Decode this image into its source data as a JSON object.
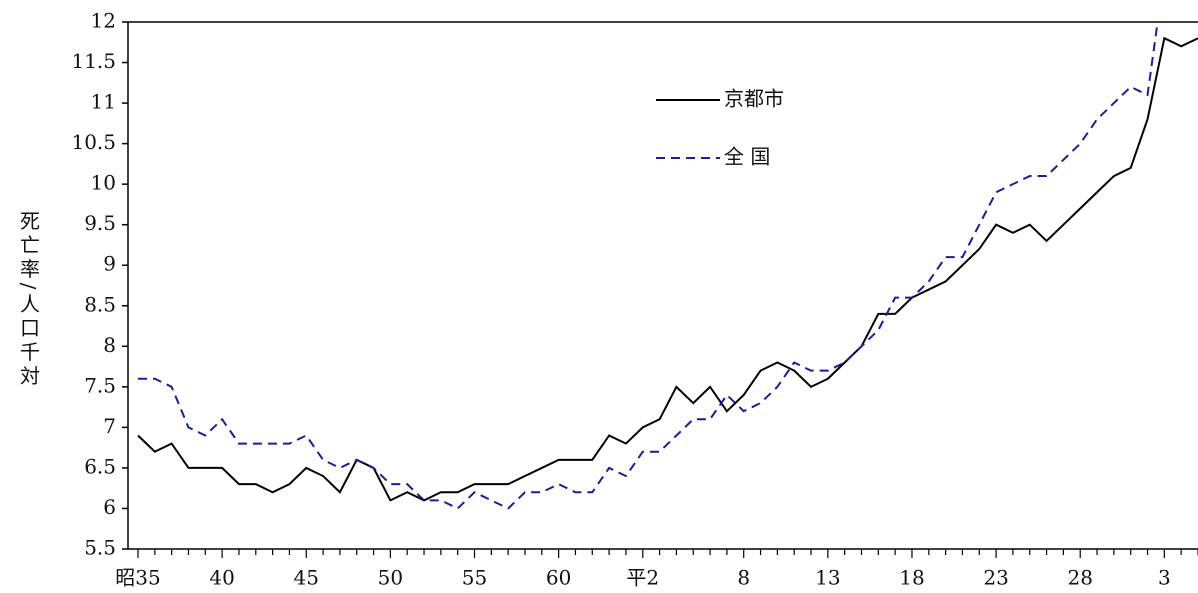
{
  "chart_data": {
    "type": "line",
    "y_label": "死亡率/人口千対",
    "categories": [
      "昭35",
      null,
      null,
      null,
      null,
      "40",
      null,
      null,
      null,
      null,
      "45",
      null,
      null,
      null,
      null,
      "50",
      null,
      null,
      null,
      null,
      "55",
      null,
      null,
      null,
      null,
      "60",
      null,
      null,
      null,
      null,
      "平2",
      null,
      null,
      null,
      null,
      null,
      "8",
      null,
      null,
      null,
      null,
      "13",
      null,
      null,
      null,
      null,
      "18",
      null,
      null,
      null,
      null,
      "23",
      null,
      null,
      null,
      null,
      "28",
      null,
      null,
      null,
      null,
      "3",
      null,
      null
    ],
    "series": [
      {
        "name": "京都市",
        "color": "#000000",
        "linestyle": "solid",
        "values": [
          6.9,
          6.7,
          6.8,
          6.5,
          6.5,
          6.5,
          6.3,
          6.3,
          6.2,
          6.3,
          6.5,
          6.4,
          6.2,
          6.6,
          6.5,
          6.1,
          6.2,
          6.1,
          6.2,
          6.2,
          6.3,
          6.3,
          6.3,
          6.4,
          6.5,
          6.6,
          6.6,
          6.6,
          6.9,
          6.8,
          7.0,
          7.1,
          7.5,
          7.3,
          7.5,
          7.2,
          7.4,
          7.7,
          7.8,
          7.7,
          7.5,
          7.6,
          7.8,
          8.0,
          8.4,
          8.4,
          8.6,
          8.7,
          8.8,
          9.0,
          9.2,
          9.5,
          9.4,
          9.5,
          9.3,
          9.5,
          9.7,
          9.9,
          10.1,
          10.2,
          10.8,
          11.8,
          11.7,
          11.8
        ]
      },
      {
        "name": "全 国",
        "color": "#1c1c9c",
        "linestyle": "dashed",
        "values": [
          7.6,
          7.6,
          7.5,
          7.0,
          6.9,
          7.1,
          6.8,
          6.8,
          6.8,
          6.8,
          6.9,
          6.6,
          6.5,
          6.6,
          6.5,
          6.3,
          6.3,
          6.1,
          6.1,
          6.0,
          6.2,
          6.1,
          6.0,
          6.2,
          6.2,
          6.3,
          6.2,
          6.2,
          6.5,
          6.4,
          6.7,
          6.7,
          6.9,
          7.1,
          7.1,
          7.4,
          7.2,
          7.3,
          7.5,
          7.8,
          7.7,
          7.7,
          7.8,
          8.0,
          8.2,
          8.6,
          8.6,
          8.8,
          9.1,
          9.1,
          9.5,
          9.9,
          10.0,
          10.1,
          10.1,
          10.3,
          10.5,
          10.8,
          11.0,
          11.2,
          11.1,
          12.6,
          null,
          null
        ]
      }
    ],
    "ylim": [
      5.5,
      12
    ],
    "yticks": [
      5.5,
      6,
      6.5,
      7,
      7.5,
      8,
      8.5,
      9,
      9.5,
      10,
      10.5,
      11,
      11.5,
      12
    ]
  }
}
